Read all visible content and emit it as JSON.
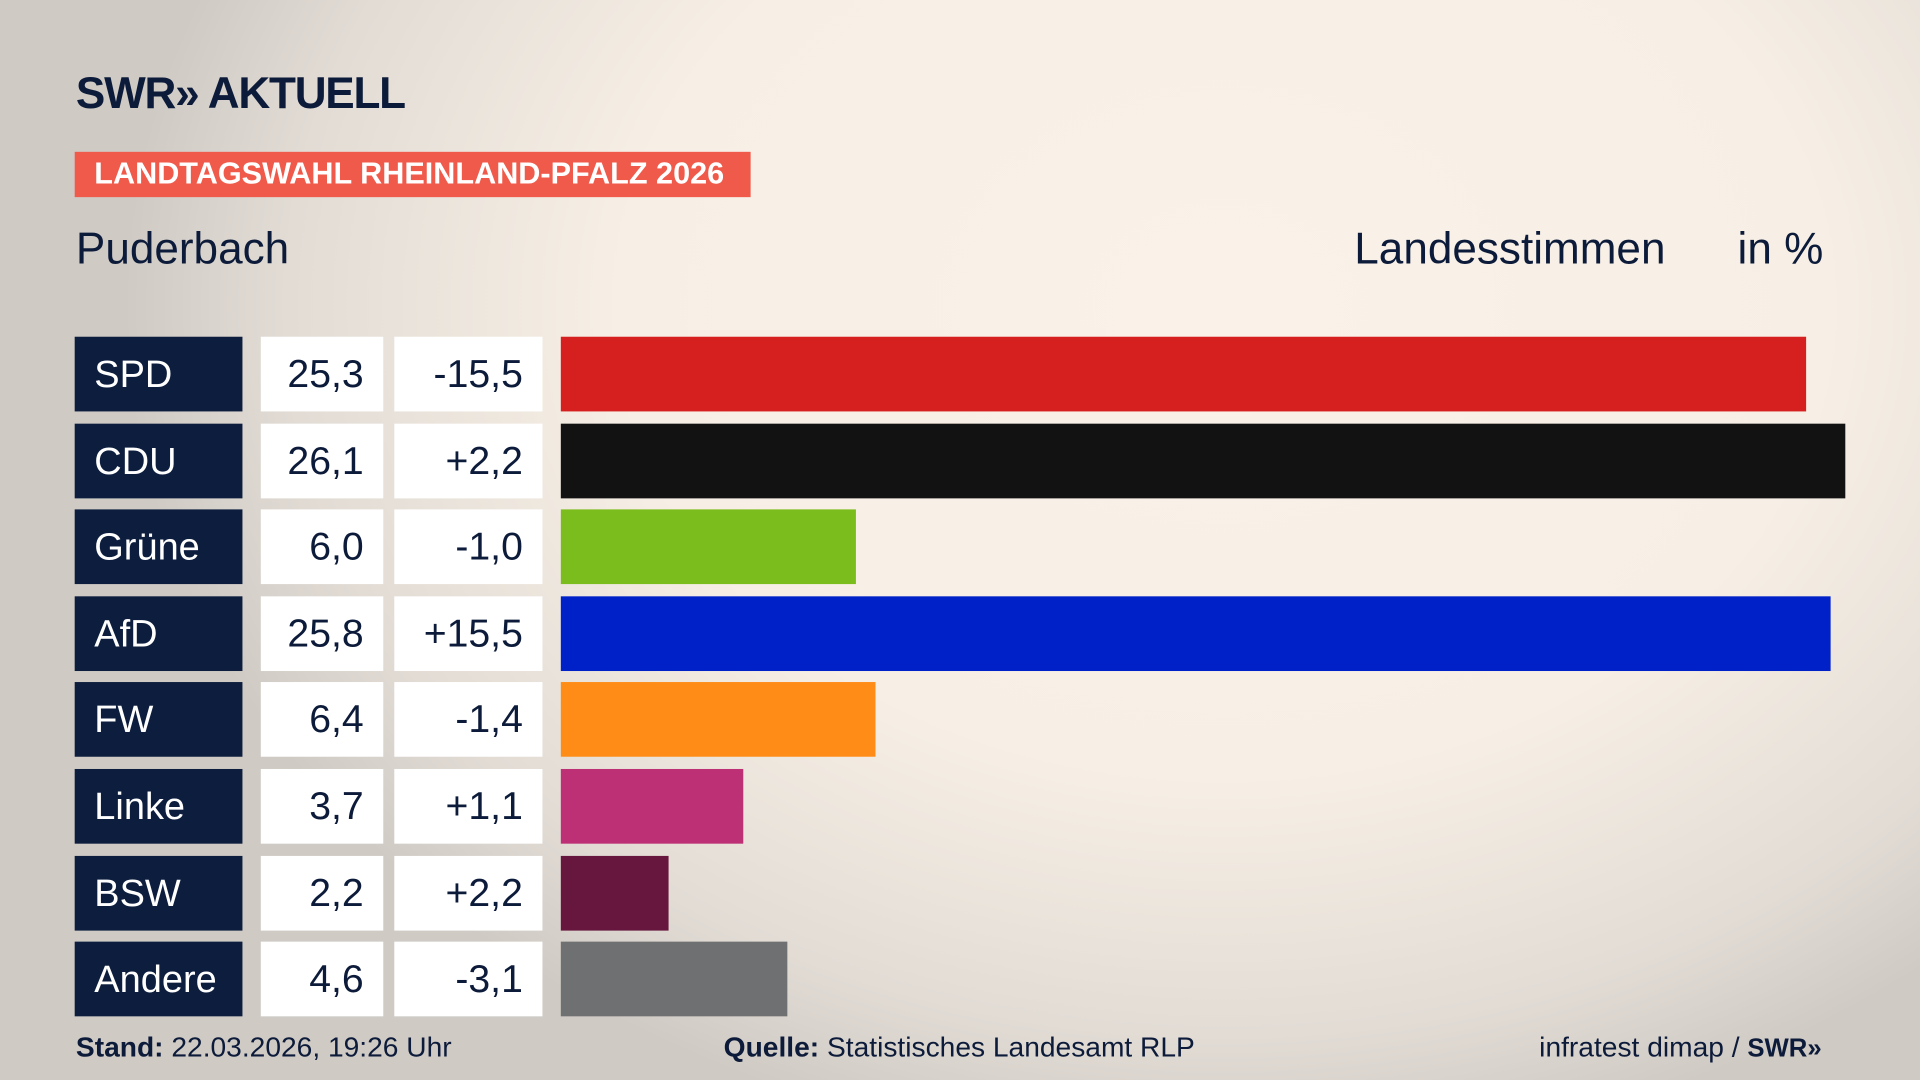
{
  "header": {
    "logo": "SWR» AKTUELL",
    "tag": "LANDTAGSWAHL RHEINLAND-PFALZ 2026",
    "region": "Puderbach",
    "metric": "Landesstimmen",
    "unit": "in %"
  },
  "chart_data": {
    "type": "bar",
    "orientation": "horizontal",
    "categories": [
      "SPD",
      "CDU",
      "Grüne",
      "AfD",
      "FW",
      "Linke",
      "BSW",
      "Andere"
    ],
    "values": [
      25.3,
      26.1,
      6.0,
      25.8,
      6.4,
      3.7,
      2.2,
      4.6
    ],
    "value_labels": [
      "25,3",
      "26,1",
      "6,0",
      "25,8",
      "6,4",
      "3,7",
      "2,2",
      "4,6"
    ],
    "diffs": [
      -15.5,
      2.2,
      -1.0,
      15.5,
      -1.4,
      1.1,
      2.2,
      -3.1
    ],
    "diff_labels": [
      "-15,5",
      "+2,2",
      "-1,0",
      "+15,5",
      "-1,4",
      "+1,1",
      "+2,2",
      "-3,1"
    ],
    "colors": [
      "#d62020",
      "#121212",
      "#7bbd1d",
      "#0021c8",
      "#ff8c17",
      "#bd3075",
      "#67173d",
      "#6f7072"
    ],
    "grid": false
  },
  "footer": {
    "stand_label": "Stand:",
    "stand_value": "22.03.2026, 19:26 Uhr",
    "source_label": "Quelle:",
    "source_value": "Statistisches Landesamt RLP",
    "credit": "infratest dimap /",
    "credit_logo": "SWR»"
  }
}
